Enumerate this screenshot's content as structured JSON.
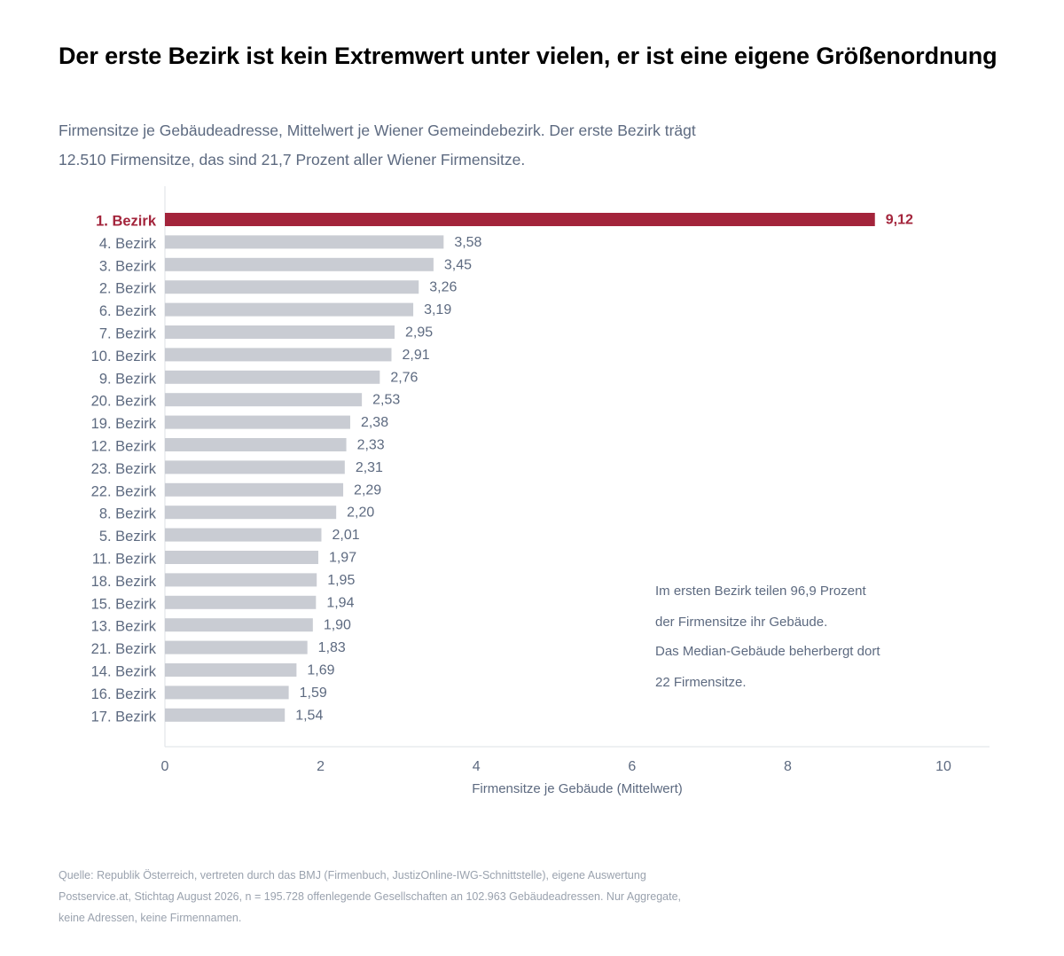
{
  "title": "Der erste Bezirk ist kein Extremwert unter vielen, er ist eine eigene Größenordnung",
  "subtitle": [
    "Firmensitze je Gebäudeadresse, Mittelwert je Wiener Gemeindebezirk. Der erste Bezirk trägt",
    "12.510 Firmensitze, das sind 21,7 Prozent aller Wiener Firmensitze."
  ],
  "chart_data": {
    "type": "bar",
    "orientation": "horizontal",
    "categories": [
      "1. Bezirk",
      "4. Bezirk",
      "3. Bezirk",
      "2. Bezirk",
      "6. Bezirk",
      "7. Bezirk",
      "10. Bezirk",
      "9. Bezirk",
      "20. Bezirk",
      "19. Bezirk",
      "12. Bezirk",
      "23. Bezirk",
      "22. Bezirk",
      "8. Bezirk",
      "5. Bezirk",
      "11. Bezirk",
      "18. Bezirk",
      "15. Bezirk",
      "13. Bezirk",
      "21. Bezirk",
      "14. Bezirk",
      "16. Bezirk",
      "17. Bezirk"
    ],
    "values": [
      9.12,
      3.58,
      3.45,
      3.26,
      3.19,
      2.95,
      2.91,
      2.76,
      2.53,
      2.38,
      2.33,
      2.31,
      2.29,
      2.2,
      2.01,
      1.97,
      1.95,
      1.94,
      1.9,
      1.83,
      1.69,
      1.59,
      1.54
    ],
    "value_labels": [
      "9,12",
      "3,58",
      "3,45",
      "3,26",
      "3,19",
      "2,95",
      "2,91",
      "2,76",
      "2,53",
      "2,38",
      "2,33",
      "2,31",
      "2,29",
      "2,20",
      "2,01",
      "1,97",
      "1,95",
      "1,94",
      "1,90",
      "1,83",
      "1,69",
      "1,59",
      "1,54"
    ],
    "highlight_index": 0,
    "xlabel": "Firmensitze je Gebäude (Mittelwert)",
    "xlim": [
      0,
      10.6
    ],
    "xticks": [
      0,
      2,
      4,
      6,
      8,
      10
    ],
    "xtick_labels": [
      "0",
      "2",
      "4",
      "6",
      "8",
      "10"
    ],
    "grid": false,
    "colors": {
      "highlight": "#a3243b",
      "default": "#c9ccd3",
      "label": "#5d6a80",
      "axis": "#dde0e5"
    }
  },
  "annotation": [
    "Im ersten Bezirk teilen 96,9 Prozent",
    "der Firmensitze ihr Gebäude.",
    "Das Median-Gebäude beherbergt dort",
    "22 Firmensitze."
  ],
  "source": [
    "Quelle: Republik Österreich, vertreten durch das BMJ (Firmenbuch, JustizOnline-IWG-Schnittstelle), eigene Auswertung",
    "Postservice.at, Stichtag August 2026, n = 195.728 offenlegende Gesellschaften an 102.963 Gebäudeadressen. Nur Aggregate,",
    "keine Adressen, keine Firmennamen."
  ]
}
